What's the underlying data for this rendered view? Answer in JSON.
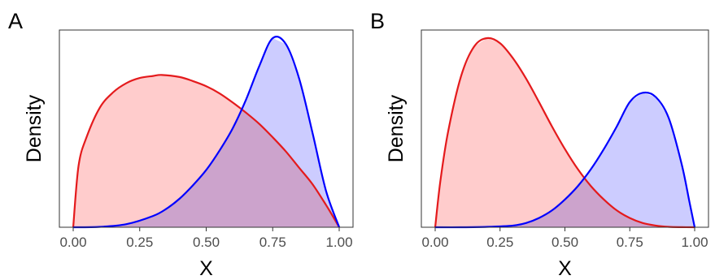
{
  "chart_data": [
    {
      "type": "area",
      "panel_label": "A",
      "xlabel": "X",
      "ylabel": "Density",
      "xlim": [
        0,
        1
      ],
      "x_ticks": [
        "0.00",
        "0.25",
        "0.50",
        "0.75",
        "1.00"
      ],
      "y_ticks": [],
      "grid": false,
      "legend": "none",
      "series": [
        {
          "color": "#e41a1c",
          "fill": "#ffcccc",
          "x": [
            0.0,
            0.02,
            0.05,
            0.1,
            0.15,
            0.2,
            0.25,
            0.3,
            0.3333,
            0.4,
            0.45,
            0.5,
            0.55,
            0.6,
            0.65,
            0.7,
            0.75,
            0.8,
            0.85,
            0.9,
            0.95,
            0.98,
            1.0
          ],
          "y": [
            0.0,
            0.6,
            0.88,
            1.17,
            1.32,
            1.41,
            1.46,
            1.48,
            1.49,
            1.47,
            1.43,
            1.38,
            1.31,
            1.22,
            1.12,
            1.01,
            0.88,
            0.74,
            0.58,
            0.42,
            0.22,
            0.09,
            0.0
          ]
        },
        {
          "color": "#0000ff",
          "fill": "#ccccff",
          "x": [
            0.0,
            0.1,
            0.2,
            0.3,
            0.35,
            0.4,
            0.45,
            0.5,
            0.55,
            0.6,
            0.65,
            0.7,
            0.75,
            0.8,
            0.85,
            0.9,
            0.95,
            1.0
          ],
          "y": [
            0.0,
            0.004,
            0.03,
            0.11,
            0.18,
            0.28,
            0.41,
            0.56,
            0.75,
            0.97,
            1.25,
            1.58,
            1.85,
            1.79,
            1.45,
            0.92,
            0.36,
            0.0
          ]
        }
      ]
    },
    {
      "type": "area",
      "panel_label": "B",
      "xlabel": "X",
      "ylabel": "Density",
      "xlim": [
        0,
        1
      ],
      "x_ticks": [
        "0.00",
        "0.25",
        "0.50",
        "0.75",
        "1.00"
      ],
      "y_ticks": [],
      "grid": false,
      "legend": "none",
      "series": [
        {
          "color": "#e41a1c",
          "fill": "#ffcccc",
          "x": [
            0.0,
            0.02,
            0.05,
            0.1,
            0.15,
            0.2,
            0.25,
            0.3,
            0.35,
            0.4,
            0.45,
            0.5,
            0.55,
            0.6,
            0.65,
            0.7,
            0.75,
            0.8,
            0.85,
            0.9,
            0.95,
            1.0
          ],
          "y": [
            0.0,
            0.55,
            1.14,
            1.8,
            2.15,
            2.25,
            2.19,
            2.01,
            1.77,
            1.49,
            1.2,
            0.93,
            0.69,
            0.49,
            0.33,
            0.2,
            0.11,
            0.05,
            0.02,
            0.005,
            0.001,
            0.0
          ]
        },
        {
          "color": "#0000ff",
          "fill": "#ccccff",
          "x": [
            0.0,
            0.1,
            0.2,
            0.3,
            0.35,
            0.4,
            0.45,
            0.5,
            0.55,
            0.6,
            0.65,
            0.7,
            0.75,
            0.8,
            0.85,
            0.9,
            0.95,
            0.98,
            1.0
          ],
          "y": [
            0.0,
            0.0,
            0.005,
            0.02,
            0.05,
            0.11,
            0.2,
            0.33,
            0.49,
            0.69,
            0.93,
            1.2,
            1.49,
            1.6,
            1.55,
            1.3,
            0.75,
            0.3,
            0.0
          ]
        }
      ]
    }
  ]
}
